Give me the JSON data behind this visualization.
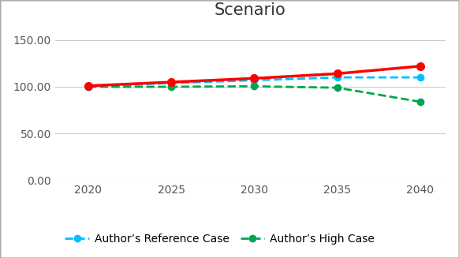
{
  "x": [
    2020,
    2025,
    2030,
    2035,
    2040
  ],
  "author_reference": [
    100.0,
    104.0,
    107.0,
    110.0,
    110.0
  ],
  "author_high": [
    100.0,
    100.0,
    100.5,
    99.0,
    84.0
  ],
  "eia_reference": [
    101.0,
    105.0,
    109.0,
    114.0,
    122.0
  ],
  "colors": {
    "author_reference": "#00BFFF",
    "author_high": "#00A550",
    "eia_reference": "#FF0000"
  },
  "ylim": [
    0,
    165
  ],
  "yticks": [
    0.0,
    50.0,
    100.0,
    150.0
  ],
  "ytick_labels": [
    "0.00",
    "50.00",
    "100.00",
    "150.00"
  ],
  "xticks": [
    2020,
    2025,
    2030,
    2035,
    2040
  ],
  "legend": {
    "author_reference_label": "Author’s Reference Case",
    "author_high_label": "Author’s High Case"
  },
  "background_color": "#FFFFFF",
  "title_fontsize": 15,
  "tick_fontsize": 10,
  "legend_fontsize": 10
}
